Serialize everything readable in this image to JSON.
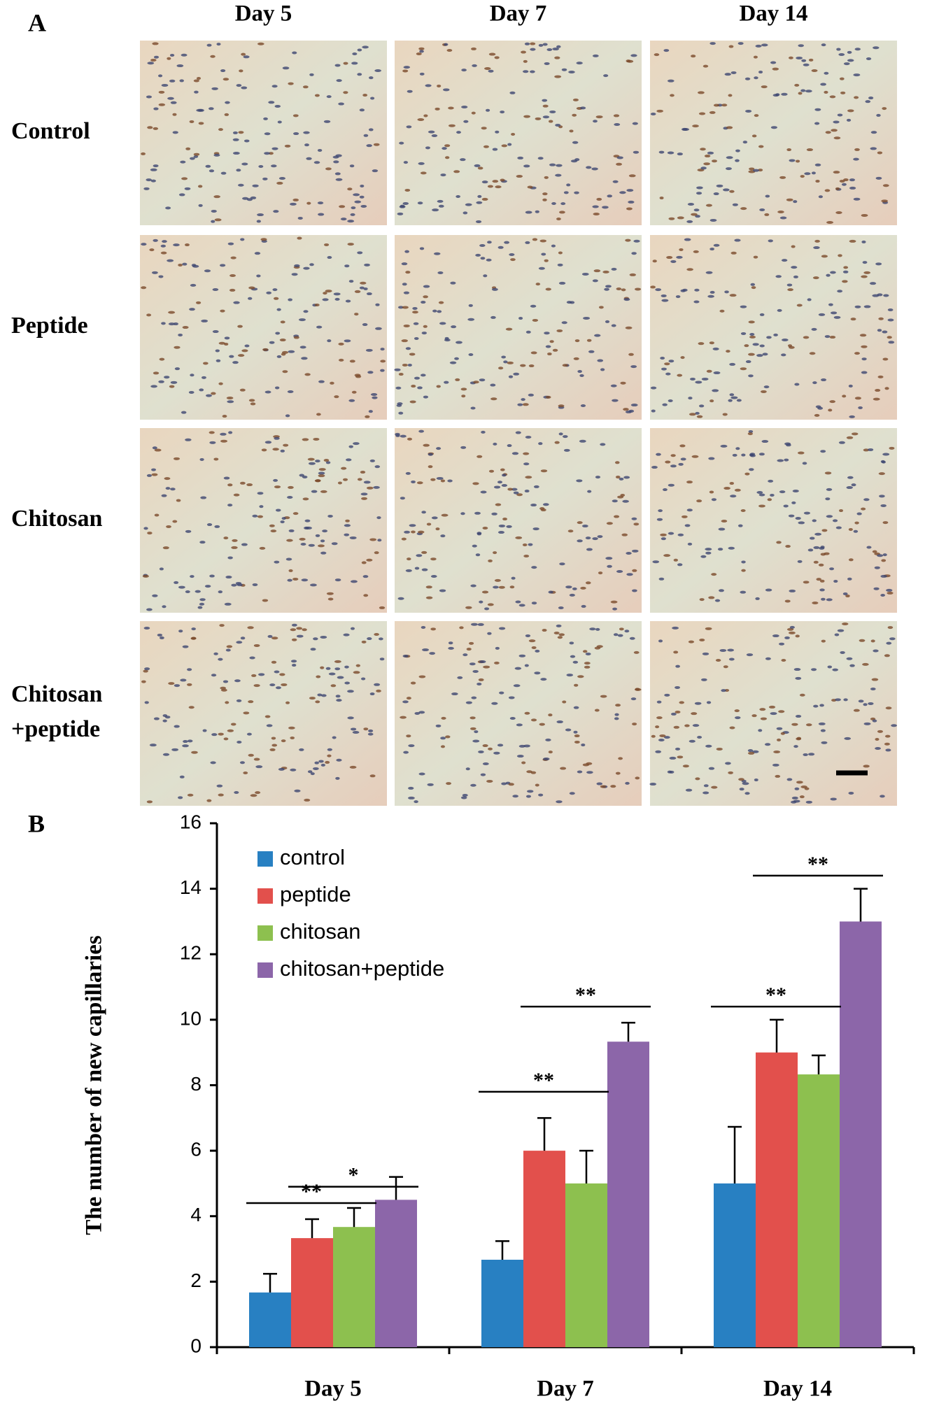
{
  "panel_a": {
    "label": "A",
    "columns": [
      "Day 5",
      "Day 7",
      "Day 14"
    ],
    "rows": [
      [
        "Control"
      ],
      [
        "Peptide"
      ],
      [
        "Chitosan"
      ],
      [
        "Chitosan",
        "+peptide"
      ]
    ]
  },
  "chart_data": {
    "type": "bar",
    "panel_label": "B",
    "y_label": "The number of new capillaries",
    "categories": [
      "Day 5",
      "Day 7",
      "Day 14"
    ],
    "series": [
      {
        "name": "control",
        "color": "#2880c2",
        "values": [
          1.67,
          2.67,
          5
        ],
        "errors": [
          0.57,
          0.57,
          1.73
        ]
      },
      {
        "name": "peptide",
        "color": "#e2504c",
        "values": [
          3.33,
          6,
          9
        ],
        "errors": [
          0.58,
          1,
          1
        ]
      },
      {
        "name": "chitosan",
        "color": "#8dc04f",
        "values": [
          3.67,
          5,
          8.33
        ],
        "errors": [
          0.58,
          1,
          0.58
        ]
      },
      {
        "name": "chitosan+peptide",
        "color": "#8c66a9",
        "values": [
          4.5,
          9.33,
          13
        ],
        "errors": [
          0.7,
          0.58,
          1
        ]
      }
    ],
    "annotations": [
      {
        "label": "**",
        "x": "Day 5",
        "from": "control",
        "to": "chitosan",
        "y": 4.4
      },
      {
        "label": "*",
        "x": "Day 5",
        "from": "peptide",
        "to": "chitosan+peptide",
        "y": 4.9
      },
      {
        "label": "**",
        "x": "Day 7",
        "from": "control",
        "to": "chitosan",
        "y": 7.8
      },
      {
        "label": "**",
        "x": "Day 7",
        "from": "peptide",
        "to": "chitosan+peptide",
        "y": 10.4
      },
      {
        "label": "**",
        "x": "Day 14",
        "from": "control",
        "to": "chitosan",
        "y": 10.4
      },
      {
        "label": "**",
        "x": "Day 14",
        "from": "peptide",
        "to": "chitosan+peptide",
        "y": 14.4
      }
    ],
    "ylim": [
      0,
      16
    ],
    "yticks": [
      0,
      2,
      4,
      6,
      8,
      10,
      12,
      14,
      16
    ],
    "legend": "top-left"
  }
}
